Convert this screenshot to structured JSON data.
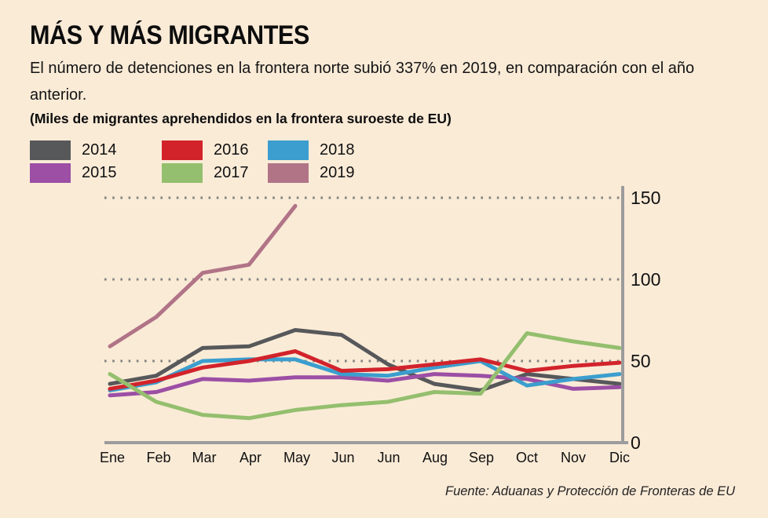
{
  "header": {
    "title": "MÁS Y MÁS MIGRANTES",
    "subtitle": "El número de detenciones en la frontera norte subió 337% en 2019, en comparación con el año anterior.",
    "units_note": "(Miles de migrantes aprehendidos en la frontera suroeste de EU)"
  },
  "legend": [
    {
      "label": "2014",
      "color": "#57585A"
    },
    {
      "label": "2015",
      "color": "#9C4FA5"
    },
    {
      "label": "2016",
      "color": "#D2232B"
    },
    {
      "label": "2017",
      "color": "#94BF6E"
    },
    {
      "label": "2018",
      "color": "#3B9ECE"
    },
    {
      "label": "2019",
      "color": "#B17487"
    }
  ],
  "chart_data": {
    "type": "line",
    "title": "MÁS Y MÁS MIGRANTES",
    "ylabel": "Miles de migrantes aprehendidos en la frontera suroeste de EU",
    "categories": [
      "Ene",
      "Feb",
      "Mar",
      "Apr",
      "May",
      "Jun",
      "Jun",
      "Aug",
      "Sep",
      "Oct",
      "Nov",
      "Dic"
    ],
    "yticks": [
      "0",
      "50",
      "100",
      "150"
    ],
    "ylim": [
      0,
      157
    ],
    "grid": "horizontal-dotted-at-50-100-150",
    "legend_position": "top-left",
    "series": [
      {
        "name": "2014",
        "color": "#57585A",
        "values": [
          36,
          41,
          58,
          59,
          69,
          66,
          48,
          36,
          32,
          42,
          39,
          36
        ]
      },
      {
        "name": "2015",
        "color": "#9C4FA5",
        "values": [
          29,
          31,
          39,
          38,
          40,
          40,
          38,
          42,
          41,
          39,
          33,
          34
        ]
      },
      {
        "name": "2016",
        "color": "#D2232B",
        "values": [
          33,
          38,
          46,
          50,
          56,
          44,
          45,
          48,
          51,
          44,
          47,
          49
        ]
      },
      {
        "name": "2017",
        "color": "#94BF6E",
        "values": [
          42,
          25,
          17,
          15,
          20,
          23,
          25,
          31,
          30,
          67,
          62,
          58
        ]
      },
      {
        "name": "2018",
        "color": "#3B9ECE",
        "values": [
          32,
          37,
          50,
          51,
          51,
          42,
          41,
          46,
          50,
          35,
          39,
          42
        ]
      },
      {
        "name": "2019",
        "color": "#B17487",
        "values": [
          59,
          77,
          104,
          109,
          145
        ]
      }
    ],
    "draw_order": [
      "2014",
      "2015",
      "2018",
      "2016",
      "2017",
      "2019"
    ]
  },
  "footer": {
    "source": "Fuente: Aduanas y Protección de Fronteras de EU"
  }
}
